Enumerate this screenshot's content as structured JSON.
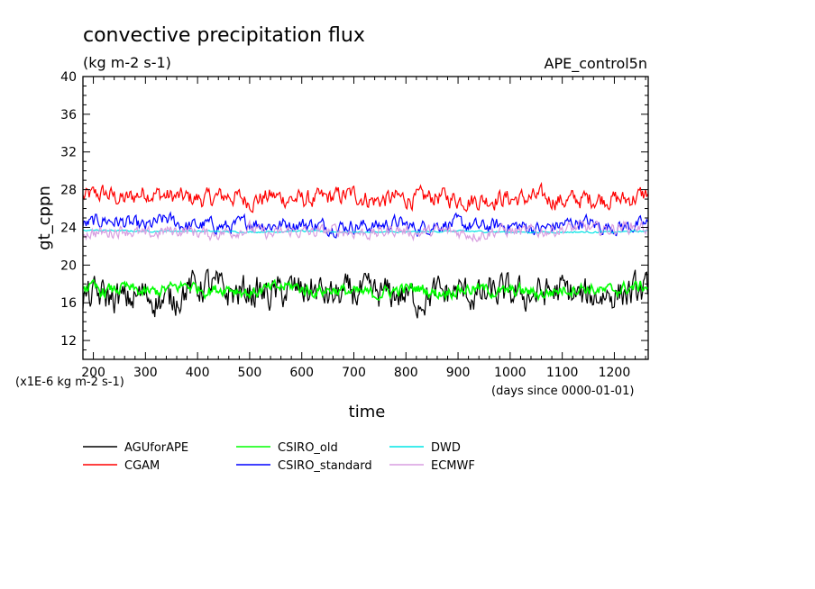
{
  "chart_data": {
    "type": "line",
    "title": "convective precipitation flux",
    "subtitle": "(kg m-2 s-1)",
    "experiment": "APE_control5n",
    "xlabel": "time",
    "ylabel": "gt_cppn",
    "x_unit_label": "(days since 0000-01-01)",
    "y_unit_label": "(x1E-6 kg m-2 s-1)",
    "xlim": [
      180,
      1265
    ],
    "ylim": [
      10,
      40
    ],
    "xticks": [
      200,
      300,
      400,
      500,
      600,
      700,
      800,
      900,
      1000,
      1100,
      1200
    ],
    "yticks": [
      12,
      16,
      20,
      24,
      28,
      32,
      36,
      40
    ],
    "grid": false,
    "legend_position": "bottom-left",
    "series": [
      {
        "name": "AGUforAPE",
        "color": "#000000",
        "x": [
          180,
          220,
          260,
          300,
          340,
          380,
          420,
          460,
          500,
          540,
          580,
          620,
          660,
          700,
          740,
          780,
          820,
          860,
          900,
          940,
          980,
          1020,
          1060,
          1100,
          1140,
          1180,
          1220,
          1265
        ],
        "y": [
          16.5,
          16.8,
          16.2,
          16.9,
          16.0,
          17.5,
          17.9,
          17.0,
          17.2,
          16.8,
          17.3,
          17.4,
          16.6,
          17.1,
          16.8,
          17.0,
          16.4,
          16.9,
          17.2,
          16.6,
          17.1,
          16.8,
          17.0,
          17.3,
          16.5,
          16.9,
          17.1,
          17.0
        ]
      },
      {
        "name": "CGAM",
        "color": "#ff0000",
        "x": [
          180,
          220,
          260,
          300,
          340,
          380,
          420,
          460,
          500,
          540,
          580,
          620,
          660,
          700,
          740,
          780,
          820,
          860,
          900,
          940,
          980,
          1020,
          1060,
          1100,
          1140,
          1180,
          1220,
          1265
        ],
        "y": [
          27.2,
          27.6,
          26.9,
          27.8,
          27.3,
          27.1,
          27.0,
          27.4,
          26.8,
          27.3,
          27.0,
          26.9,
          27.2,
          27.5,
          26.8,
          27.1,
          27.0,
          27.3,
          27.0,
          26.9,
          27.1,
          27.0,
          27.2,
          26.8,
          27.0,
          27.1,
          26.9,
          27.6
        ]
      },
      {
        "name": "CSIRO_old",
        "color": "#00ff00",
        "x": [
          180,
          220,
          260,
          300,
          340,
          380,
          420,
          460,
          500,
          540,
          580,
          620,
          660,
          700,
          740,
          780,
          820,
          860,
          900,
          940,
          980,
          1020,
          1060,
          1100,
          1140,
          1180,
          1220,
          1265
        ],
        "y": [
          17.8,
          17.2,
          17.6,
          17.0,
          17.4,
          17.9,
          17.3,
          17.6,
          17.0,
          17.5,
          17.8,
          17.2,
          17.4,
          17.1,
          16.9,
          17.3,
          17.6,
          17.0,
          17.4,
          17.5,
          17.1,
          17.3,
          16.9,
          17.4,
          17.6,
          17.2,
          17.5,
          17.8
        ]
      },
      {
        "name": "CSIRO_standard",
        "color": "#0000ff",
        "x": [
          180,
          220,
          260,
          300,
          340,
          380,
          420,
          460,
          500,
          540,
          580,
          620,
          660,
          700,
          740,
          780,
          820,
          860,
          900,
          940,
          980,
          1020,
          1060,
          1100,
          1140,
          1180,
          1220,
          1265
        ],
        "y": [
          24.2,
          24.8,
          24.5,
          24.0,
          24.9,
          24.1,
          24.3,
          24.0,
          24.6,
          24.2,
          24.4,
          24.3,
          24.0,
          24.2,
          24.1,
          24.5,
          23.9,
          24.3,
          24.4,
          24.0,
          24.2,
          24.1,
          23.8,
          24.3,
          24.6,
          24.0,
          24.1,
          24.3
        ]
      },
      {
        "name": "DWD",
        "color": "#00e5e5",
        "x": [
          180,
          300,
          400,
          500,
          600,
          700,
          800,
          900,
          1000,
          1100,
          1200,
          1265
        ],
        "y": [
          23.7,
          23.6,
          23.6,
          23.5,
          23.6,
          23.5,
          23.5,
          23.6,
          23.5,
          23.5,
          23.5,
          23.6
        ]
      },
      {
        "name": "ECMWF",
        "color": "#d89ee0",
        "x": [
          180,
          220,
          260,
          300,
          340,
          380,
          420,
          460,
          500,
          540,
          580,
          620,
          660,
          700,
          740,
          780,
          820,
          860,
          900,
          940,
          980,
          1020,
          1060,
          1100,
          1140,
          1180,
          1220,
          1265
        ],
        "y": [
          23.5,
          23.4,
          23.8,
          23.1,
          23.6,
          23.7,
          23.3,
          23.5,
          23.9,
          23.2,
          23.6,
          23.4,
          23.7,
          23.5,
          23.3,
          23.8,
          23.4,
          23.6,
          23.5,
          23.2,
          23.7,
          23.5,
          23.6,
          23.8,
          24.0,
          23.7,
          24.1,
          24.0
        ]
      }
    ]
  }
}
